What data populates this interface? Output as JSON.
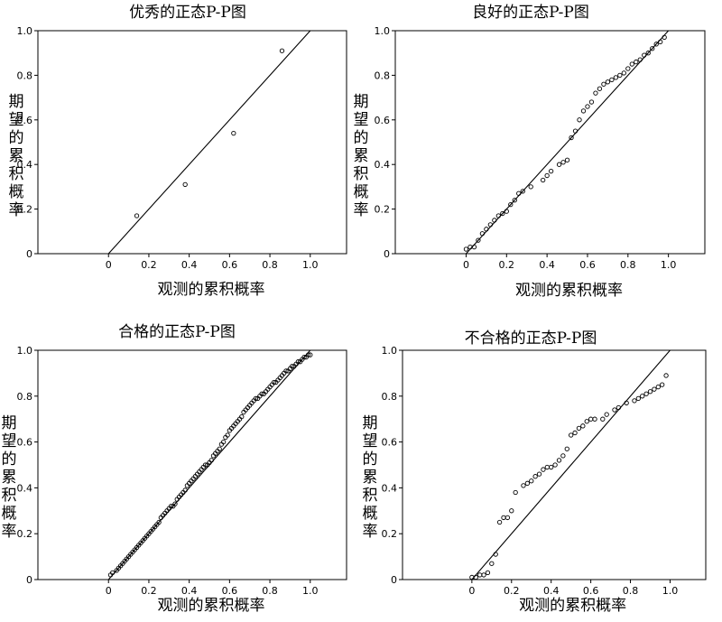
{
  "chart_data": [
    {
      "type": "scatter",
      "title": "优秀的正态P-P图",
      "xlabel": "观测的累积概率",
      "ylabel": "期望的累积概率",
      "xlim": [
        -0.35,
        1.18
      ],
      "ylim": [
        0,
        1.0
      ],
      "xticks": [
        "0",
        "0.2",
        "0.4",
        "0.6",
        "0.8",
        "1.0"
      ],
      "yticks": [
        "0",
        "0.2",
        "0.4",
        "0.6",
        "0.8",
        "1.0"
      ],
      "reference_line": {
        "from": [
          0,
          0
        ],
        "to": [
          1,
          1
        ]
      },
      "grid": false,
      "points": {
        "x": [
          0.14,
          0.38,
          0.62,
          0.86
        ],
        "y": [
          0.17,
          0.31,
          0.54,
          0.91
        ]
      }
    },
    {
      "type": "scatter",
      "title": "良好的正态P-P图",
      "xlabel": "观测的累积概率",
      "ylabel": "期望的累积概率",
      "xlim": [
        -0.35,
        1.18
      ],
      "ylim": [
        0,
        1.0
      ],
      "xticks": [
        "0",
        "0.2",
        "0.4",
        "0.6",
        "0.8",
        "1.0"
      ],
      "yticks": [
        "0",
        "0.2",
        "0.4",
        "0.6",
        "0.8",
        "1.0"
      ],
      "reference_line": {
        "from": [
          0,
          0
        ],
        "to": [
          1,
          1
        ]
      },
      "grid": false,
      "points": {
        "x": [
          0.0,
          0.02,
          0.04,
          0.06,
          0.08,
          0.1,
          0.12,
          0.14,
          0.16,
          0.18,
          0.2,
          0.22,
          0.24,
          0.26,
          0.28,
          0.32,
          0.38,
          0.4,
          0.42,
          0.46,
          0.48,
          0.5,
          0.52,
          0.54,
          0.56,
          0.58,
          0.6,
          0.62,
          0.64,
          0.66,
          0.68,
          0.7,
          0.72,
          0.74,
          0.76,
          0.78,
          0.8,
          0.82,
          0.84,
          0.86,
          0.88,
          0.9,
          0.92,
          0.94,
          0.96,
          0.98
        ],
        "y": [
          0.02,
          0.03,
          0.03,
          0.06,
          0.09,
          0.11,
          0.13,
          0.15,
          0.17,
          0.18,
          0.19,
          0.22,
          0.24,
          0.27,
          0.28,
          0.3,
          0.33,
          0.35,
          0.37,
          0.4,
          0.41,
          0.42,
          0.52,
          0.55,
          0.6,
          0.64,
          0.66,
          0.68,
          0.72,
          0.74,
          0.76,
          0.77,
          0.78,
          0.79,
          0.8,
          0.81,
          0.83,
          0.85,
          0.86,
          0.87,
          0.89,
          0.9,
          0.92,
          0.94,
          0.95,
          0.97
        ]
      }
    },
    {
      "type": "scatter",
      "title": "合格的正态P-P图",
      "xlabel": "观测的累积概率",
      "ylabel": "期望的累积概率",
      "xlim": [
        -0.35,
        1.18
      ],
      "ylim": [
        0,
        1.0
      ],
      "xticks": [
        "0",
        "0.2",
        "0.4",
        "0.6",
        "0.8",
        "1.0"
      ],
      "yticks": [
        "0",
        "0.2",
        "0.4",
        "0.6",
        "0.8",
        "1.0"
      ],
      "reference_line": {
        "from": [
          0,
          0
        ],
        "to": [
          1,
          1
        ]
      },
      "grid": false,
      "points": {
        "x": [
          0.01,
          0.02,
          0.04,
          0.05,
          0.06,
          0.07,
          0.08,
          0.09,
          0.1,
          0.11,
          0.12,
          0.13,
          0.14,
          0.15,
          0.16,
          0.17,
          0.18,
          0.19,
          0.2,
          0.21,
          0.22,
          0.23,
          0.24,
          0.25,
          0.26,
          0.27,
          0.28,
          0.29,
          0.3,
          0.31,
          0.32,
          0.33,
          0.34,
          0.35,
          0.36,
          0.37,
          0.38,
          0.39,
          0.4,
          0.41,
          0.42,
          0.43,
          0.44,
          0.45,
          0.46,
          0.47,
          0.48,
          0.49,
          0.5,
          0.51,
          0.52,
          0.53,
          0.54,
          0.55,
          0.56,
          0.57,
          0.58,
          0.59,
          0.6,
          0.61,
          0.62,
          0.63,
          0.64,
          0.65,
          0.66,
          0.67,
          0.68,
          0.69,
          0.7,
          0.71,
          0.72,
          0.73,
          0.74,
          0.75,
          0.76,
          0.77,
          0.78,
          0.79,
          0.8,
          0.81,
          0.82,
          0.83,
          0.84,
          0.85,
          0.86,
          0.87,
          0.88,
          0.89,
          0.9,
          0.91,
          0.92,
          0.93,
          0.94,
          0.95,
          0.96,
          0.97,
          0.98,
          0.99,
          1.0
        ],
        "y": [
          0.02,
          0.03,
          0.04,
          0.05,
          0.06,
          0.07,
          0.08,
          0.09,
          0.1,
          0.11,
          0.12,
          0.13,
          0.14,
          0.15,
          0.16,
          0.17,
          0.18,
          0.19,
          0.2,
          0.21,
          0.22,
          0.23,
          0.24,
          0.25,
          0.27,
          0.28,
          0.29,
          0.3,
          0.31,
          0.32,
          0.32,
          0.33,
          0.35,
          0.36,
          0.37,
          0.38,
          0.39,
          0.41,
          0.42,
          0.43,
          0.44,
          0.45,
          0.46,
          0.47,
          0.48,
          0.49,
          0.5,
          0.5,
          0.51,
          0.52,
          0.54,
          0.55,
          0.56,
          0.57,
          0.59,
          0.6,
          0.62,
          0.63,
          0.65,
          0.66,
          0.67,
          0.68,
          0.69,
          0.7,
          0.71,
          0.73,
          0.74,
          0.75,
          0.76,
          0.77,
          0.78,
          0.79,
          0.79,
          0.8,
          0.81,
          0.81,
          0.82,
          0.83,
          0.84,
          0.85,
          0.86,
          0.86,
          0.87,
          0.88,
          0.89,
          0.9,
          0.91,
          0.91,
          0.92,
          0.93,
          0.93,
          0.94,
          0.95,
          0.95,
          0.96,
          0.97,
          0.97,
          0.98,
          0.98
        ]
      }
    },
    {
      "type": "scatter",
      "title": "不合格的正态P-P图",
      "xlabel": "观测的累积概率",
      "ylabel": "期望的累积概率",
      "xlim": [
        -0.35,
        1.18
      ],
      "ylim": [
        0,
        1.0
      ],
      "xticks": [
        "0",
        "0.2",
        "0.4",
        "0.6",
        "0.8",
        "1.0"
      ],
      "yticks": [
        "0",
        "0.2",
        "0.4",
        "0.6",
        "0.8",
        "1.0"
      ],
      "reference_line": {
        "from": [
          0,
          0
        ],
        "to": [
          1,
          1
        ]
      },
      "grid": false,
      "points": {
        "x": [
          0.0,
          0.02,
          0.04,
          0.06,
          0.08,
          0.1,
          0.12,
          0.14,
          0.16,
          0.18,
          0.2,
          0.22,
          0.26,
          0.28,
          0.3,
          0.32,
          0.34,
          0.36,
          0.38,
          0.4,
          0.42,
          0.44,
          0.46,
          0.48,
          0.5,
          0.52,
          0.54,
          0.56,
          0.58,
          0.6,
          0.62,
          0.66,
          0.68,
          0.72,
          0.74,
          0.78,
          0.82,
          0.84,
          0.86,
          0.88,
          0.9,
          0.92,
          0.94,
          0.96,
          0.98
        ],
        "y": [
          0.01,
          0.01,
          0.02,
          0.02,
          0.03,
          0.07,
          0.11,
          0.25,
          0.27,
          0.27,
          0.3,
          0.38,
          0.41,
          0.42,
          0.43,
          0.45,
          0.46,
          0.48,
          0.49,
          0.49,
          0.5,
          0.52,
          0.54,
          0.57,
          0.63,
          0.64,
          0.66,
          0.67,
          0.69,
          0.7,
          0.7,
          0.7,
          0.72,
          0.74,
          0.75,
          0.77,
          0.78,
          0.79,
          0.8,
          0.81,
          0.82,
          0.83,
          0.84,
          0.85,
          0.89
        ]
      }
    }
  ]
}
